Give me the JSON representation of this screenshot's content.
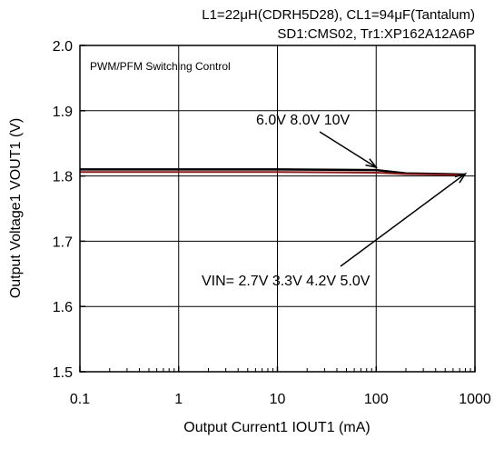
{
  "chart_data": {
    "type": "line",
    "conditions": {
      "line1": "L1=22μH(CDRH5D28), CL1=94μF(Tantalum)",
      "line2": "SD1:CMS02, Tr1:XP162A12A6P"
    },
    "inset_label": "PWM/PFM Switching Control",
    "xlabel": "Output Current1  IOUT1 (mA)",
    "ylabel": "Output Voltage1  VOUT1 (V)",
    "x_scale": "log",
    "xlim": [
      0.1,
      1000
    ],
    "ylim": [
      1.5,
      2.0
    ],
    "x_ticks": [
      0.1,
      1,
      10,
      100,
      1000
    ],
    "x_tick_labels": [
      "0.1",
      "1",
      "10",
      "100",
      "1000"
    ],
    "y_ticks": [
      1.5,
      1.6,
      1.7,
      1.8,
      1.9,
      2.0
    ],
    "y_tick_labels": [
      "1.5",
      "1.6",
      "1.7",
      "1.8",
      "1.9",
      "2.0"
    ],
    "grid": true,
    "series": [
      {
        "name": "6.0V 8.0V 10V",
        "color": "#000000",
        "x": [
          0.1,
          1,
          10,
          100,
          200,
          500,
          800
        ],
        "y": [
          1.81,
          1.81,
          1.81,
          1.809,
          1.804,
          1.803,
          1.802
        ]
      },
      {
        "name": "VIN= 2.7V 3.3V 4.2V 5.0V",
        "color": "#8b1a1a",
        "x": [
          0.1,
          1,
          10,
          100,
          200,
          500,
          800
        ],
        "y": [
          1.806,
          1.806,
          1.806,
          1.805,
          1.803,
          1.802,
          1.801
        ]
      }
    ],
    "annotations": [
      {
        "text": "6.0V 8.0V 10V",
        "points_to": {
          "x": 100,
          "y": 1.809
        }
      },
      {
        "text": "VIN= 2.7V 3.3V 4.2V 5.0V",
        "points_to": {
          "x": 800,
          "y": 1.802
        }
      }
    ]
  }
}
